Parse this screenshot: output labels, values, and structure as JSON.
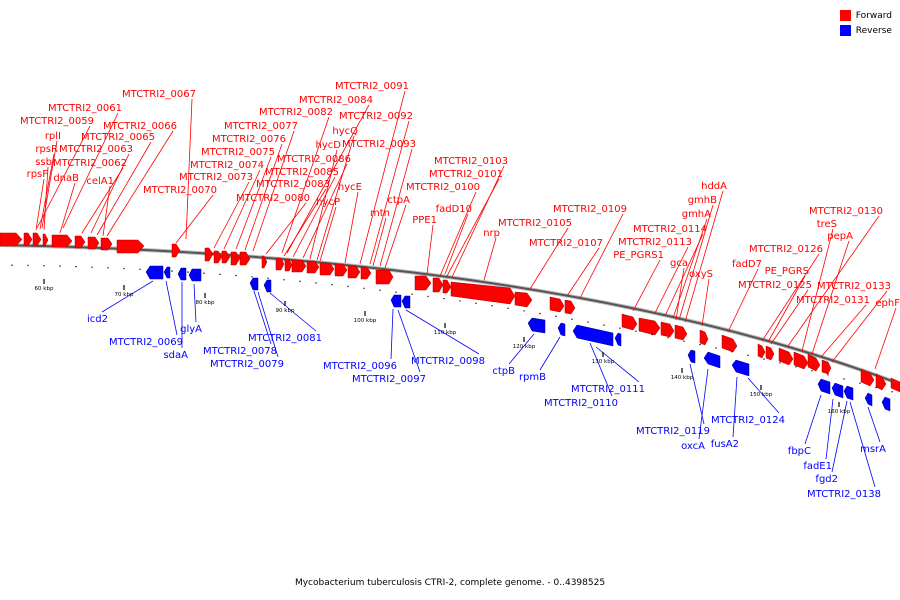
{
  "legend": {
    "forward_label": "Forward",
    "forward_color": "#ff0000",
    "reverse_label": "Reverse",
    "reverse_color": "#0000ff"
  },
  "caption": "Mycobacterium tuberculosis CTRI-2, complete genome. - 0..4398525",
  "tick_labels": [
    "60 kbp",
    "70 kbp",
    "80 kbp",
    "90 kbp",
    "100 kbp",
    "110 kbp",
    "120 kbp",
    "130 kbp",
    "140 kbp",
    "150 kbp",
    "160 kbp"
  ],
  "forward_genes": [
    "MTCTRI2_0067",
    "MTCTRI2_0061",
    "MTCTRI2_0059",
    "rplI",
    "rpsR",
    "ssb",
    "rpsF",
    "MTCTRI2_0063",
    "dnaB",
    "MTCTRI2_0062",
    "MTCTRI2_0065",
    "MTCTRI2_0066",
    "celA1",
    "MTCTRI2_0070",
    "MTCTRI2_0084",
    "MTCTRI2_0082",
    "MTCTRI2_0077",
    "MTCTRI2_0076",
    "MTCTRI2_0075",
    "MTCTRI2_0074",
    "MTCTRI2_0073",
    "MTCTRI2_0080",
    "MTCTRI2_0083",
    "MTCTRI2_0085",
    "MTCTRI2_0086",
    "hycD",
    "hycQ",
    "hycP",
    "hycE",
    "MTCTRI2_0091",
    "MTCTRI2_0092",
    "MTCTRI2_0093",
    "mtn",
    "ctpA",
    "MTCTRI2_0103",
    "MTCTRI2_0101",
    "MTCTRI2_0100",
    "fadD10",
    "PPE1",
    "nrp",
    "MTCTRI2_0105",
    "MTCTRI2_0107",
    "MTCTRI2_0109",
    "hddA",
    "gmhB",
    "gmhA",
    "MTCTRI2_0114",
    "MTCTRI2_0113",
    "PE_PGRS1",
    "gca",
    "oxyS",
    "fadD7",
    "MTCTRI2_0126",
    "PE_PGRS",
    "MTCTRI2_0125",
    "MTCTRI2_0130",
    "treS",
    "pepA",
    "MTCTRI2_0131",
    "MTCTRI2_0133",
    "ephF"
  ],
  "reverse_genes": [
    "icd2",
    "MTCTRI2_0069",
    "sdaA",
    "glyA",
    "MTCTRI2_0078",
    "MTCTRI2_0079",
    "MTCTRI2_0081",
    "MTCTRI2_0096",
    "MTCTRI2_0097",
    "MTCTRI2_0098",
    "ctpB",
    "rpmB",
    "MTCTRI2_0111",
    "MTCTRI2_0110",
    "MTCTRI2_0119",
    "oxcA",
    "fusA2",
    "MTCTRI2_0124",
    "fbpC",
    "fadE1",
    "fgd2",
    "MTCTRI2_0138",
    "msrA"
  ]
}
